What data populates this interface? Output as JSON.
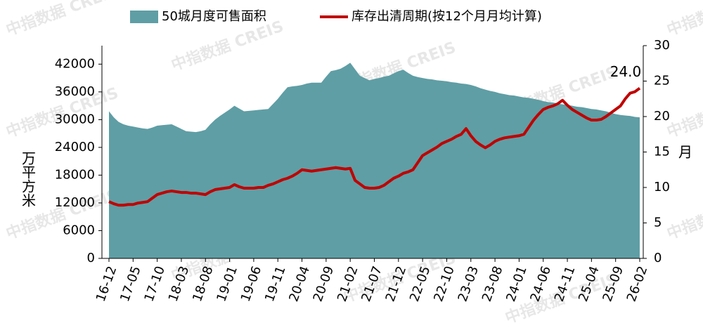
{
  "chart_data": {
    "type": "area-line",
    "categories": [
      "16-12",
      null,
      null,
      null,
      null,
      "17-05",
      null,
      null,
      null,
      null,
      "17-10",
      null,
      null,
      null,
      null,
      "18-03",
      null,
      null,
      null,
      null,
      "18-08",
      null,
      null,
      null,
      null,
      "19-01",
      null,
      null,
      null,
      null,
      "19-06",
      null,
      null,
      null,
      null,
      "19-11",
      null,
      null,
      null,
      null,
      "20-04",
      null,
      null,
      null,
      null,
      "20-09",
      null,
      null,
      null,
      null,
      "21-02",
      null,
      null,
      null,
      null,
      "21-07",
      null,
      null,
      null,
      null,
      "21-12",
      null,
      null,
      null,
      null,
      "22-05",
      null,
      null,
      null,
      null,
      "22-10",
      null,
      null,
      null,
      null,
      "23-03",
      null,
      null,
      null,
      null,
      "23-08",
      null,
      null,
      null,
      null,
      "24-01",
      null,
      null,
      null,
      null,
      "24-06",
      null,
      null,
      null,
      null,
      "24-11",
      null,
      null,
      null,
      null,
      "25-04",
      null,
      null,
      null,
      null,
      "25-09",
      null,
      null,
      null,
      null,
      "26-02"
    ],
    "series": [
      {
        "name": "50城月度可售面积",
        "color": "#5f9ea5",
        "values": [
          31800,
          30500,
          29500,
          29000,
          28700,
          28500,
          28300,
          28100,
          28000,
          28300,
          28700,
          28800,
          28900,
          29000,
          28500,
          28000,
          27500,
          27400,
          27300,
          27500,
          27800,
          29000,
          30000,
          30800,
          31500,
          32200,
          33000,
          32400,
          31800,
          31900,
          32000,
          32100,
          32200,
          32300,
          33400,
          34500,
          35800,
          37000,
          37200,
          37300,
          37500,
          37800,
          38000,
          38000,
          38000,
          39300,
          40500,
          40700,
          41000,
          41600,
          42300,
          40900,
          39500,
          39000,
          38500,
          38800,
          39000,
          39300,
          39500,
          40000,
          40500,
          40800,
          40100,
          39500,
          39200,
          39000,
          38800,
          38700,
          38500,
          38400,
          38300,
          38100,
          38000,
          37800,
          37700,
          37500,
          37200,
          36800,
          36500,
          36200,
          36000,
          35700,
          35500,
          35300,
          35200,
          35000,
          34800,
          34700,
          34500,
          34300,
          34000,
          33800,
          33700,
          33500,
          33300,
          33200,
          33000,
          32800,
          32700,
          32500,
          32300,
          32200,
          32000,
          31800,
          31500,
          31200,
          31000,
          30900,
          30800,
          30600,
          30500
        ]
      },
      {
        "name": "库存出清周期(按12个月月均计算)",
        "color": "#c00000",
        "axis": "y2",
        "values": [
          8.0,
          7.7,
          7.5,
          7.5,
          7.6,
          7.6,
          7.8,
          7.9,
          8.0,
          8.5,
          9.0,
          9.2,
          9.4,
          9.5,
          9.4,
          9.3,
          9.3,
          9.2,
          9.2,
          9.1,
          9.0,
          9.4,
          9.7,
          9.8,
          9.9,
          10.0,
          10.4,
          10.1,
          9.9,
          9.9,
          9.9,
          10.0,
          10.0,
          10.3,
          10.5,
          10.8,
          11.1,
          11.3,
          11.6,
          12.0,
          12.5,
          12.4,
          12.3,
          12.4,
          12.5,
          12.6,
          12.7,
          12.8,
          12.7,
          12.6,
          12.7,
          11.0,
          10.5,
          10.0,
          9.9,
          9.9,
          10.0,
          10.3,
          10.8,
          11.3,
          11.6,
          12.0,
          12.2,
          12.5,
          13.5,
          14.5,
          14.9,
          15.3,
          15.7,
          16.2,
          16.5,
          16.8,
          17.2,
          17.5,
          18.3,
          17.3,
          16.5,
          16.0,
          15.6,
          16.0,
          16.5,
          16.8,
          17.0,
          17.1,
          17.2,
          17.3,
          17.5,
          18.5,
          19.5,
          20.3,
          21.0,
          21.3,
          21.5,
          21.8,
          22.3,
          21.6,
          21.0,
          20.6,
          20.2,
          19.8,
          19.5,
          19.5,
          19.6,
          20.0,
          20.5,
          21.0,
          21.5,
          22.5,
          23.3,
          23.5,
          24.0
        ]
      }
    ],
    "ylabel": "万平方米",
    "y2label": "月",
    "annotation": "24.0",
    "watermark": "中指数据 CREIS",
    "ylim": [
      0,
      46000
    ],
    "yticks": [
      0,
      6000,
      12000,
      18000,
      24000,
      30000,
      36000,
      42000
    ],
    "y2lim": [
      0,
      30
    ],
    "y2ticks": [
      0,
      5,
      10,
      15,
      20,
      25,
      30
    ]
  }
}
